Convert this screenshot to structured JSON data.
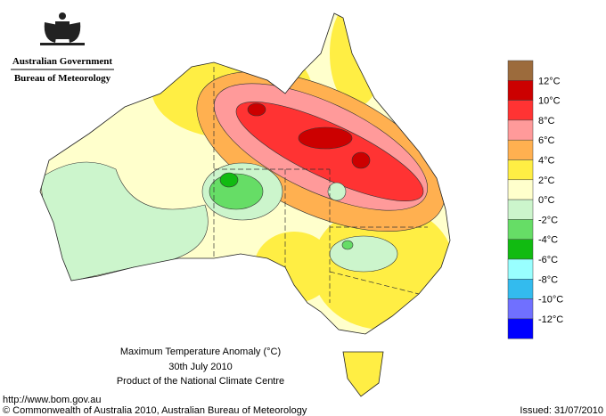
{
  "header": {
    "agency": "Australian Government",
    "bureau": "Bureau of Meteorology"
  },
  "legend": {
    "colors": [
      "#9c6b3c",
      "#cc0000",
      "#ff3333",
      "#ff9a9a",
      "#ffb050",
      "#ffee44",
      "#ffffcc",
      "#ccf5cc",
      "#66dd66",
      "#11bb11",
      "#99ffff",
      "#33bbee",
      "#7070ff",
      "#0000ff"
    ],
    "labels": [
      "12°C",
      "10°C",
      "8°C",
      "6°C",
      "4°C",
      "2°C",
      "0°C",
      "-2°C",
      "-4°C",
      "-6°C",
      "-8°C",
      "-10°C",
      "-12°C"
    ]
  },
  "caption": {
    "title": "Maximum Temperature Anomaly (°C)",
    "date": "30th July 2010",
    "product": "Product of the National Climate Centre"
  },
  "footer": {
    "url": "http://www.bom.gov.au",
    "copyright": "© Commonwealth of Australia 2010, Australian Bureau of Meteorology",
    "issued": "Issued: 31/07/2010"
  }
}
